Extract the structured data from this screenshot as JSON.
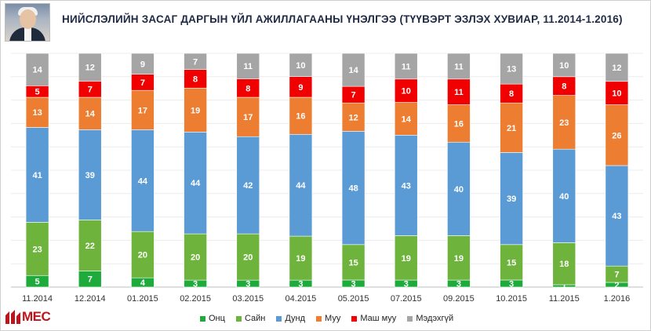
{
  "title": "НИЙСЛЭЛИЙН  ЗАСАГ ДАРГЫН ҮЙЛ АЖИЛЛАГААНЫ ҮНЭЛГЭЭ (ТҮҮВЭРТ ЭЗЛЭХ ХУВИАР, 11.2014-1.2016)",
  "logo_text": "МЕС",
  "chart_data": {
    "type": "bar",
    "stacked": true,
    "grid": true,
    "legend_position": "bottom",
    "categories": [
      "11.2014",
      "12.2014",
      "01.2015",
      "02.2015",
      "03.2015",
      "04.2015",
      "05.2015",
      "07.2015",
      "09.2015",
      "10.2015",
      "11.2015",
      "1.2016"
    ],
    "series": [
      {
        "name": "Онц",
        "color": "#1faa3c",
        "values": [
          5,
          7,
          4,
          3,
          3,
          3,
          3,
          3,
          3,
          3,
          1,
          2
        ]
      },
      {
        "name": "Сайн",
        "color": "#6eb43c",
        "values": [
          23,
          22,
          20,
          20,
          20,
          19,
          15,
          19,
          19,
          15,
          18,
          7
        ]
      },
      {
        "name": "Дунд",
        "color": "#5b9bd5",
        "values": [
          41,
          39,
          44,
          44,
          42,
          44,
          48,
          43,
          40,
          39,
          40,
          43
        ]
      },
      {
        "name": "Муу",
        "color": "#ed7d31",
        "values": [
          13,
          14,
          17,
          19,
          17,
          16,
          12,
          14,
          16,
          21,
          23,
          26
        ]
      },
      {
        "name": "Маш муу",
        "color": "#f00000",
        "values": [
          5,
          7,
          7,
          8,
          8,
          9,
          7,
          10,
          11,
          8,
          8,
          10
        ]
      },
      {
        "name": "Мэдэхгүй",
        "color": "#a5a5a5",
        "values": [
          14,
          12,
          9,
          7,
          11,
          10,
          14,
          11,
          11,
          13,
          10,
          12
        ]
      }
    ],
    "ylim": [
      0,
      100
    ]
  }
}
